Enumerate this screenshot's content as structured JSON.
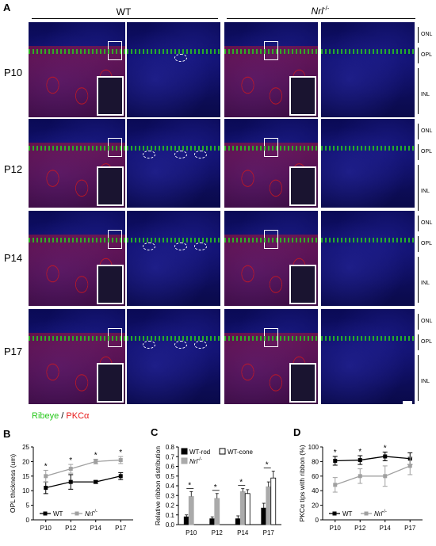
{
  "panels": {
    "a": {
      "letter": "A",
      "groups": [
        "WT",
        "Nrl-/-"
      ],
      "groups_italic_base": "Nrl",
      "groups_super": "-/-",
      "ages": [
        "P10",
        "P12",
        "P14",
        "P17"
      ],
      "layers": {
        "onl": "ONL",
        "opl": "OPL",
        "inl": "INL"
      },
      "legend_ribeye": "Ribeye",
      "legend_sep": " / ",
      "legend_pkca": "PKCα"
    },
    "b": {
      "letter": "B"
    },
    "c": {
      "letter": "C"
    },
    "d": {
      "letter": "D"
    }
  },
  "colors": {
    "ribeye": "#27c81c",
    "pkca": "#e81a1a",
    "wt": "#000000",
    "nrl": "#a0a0a0"
  },
  "chart_data": [
    {
      "id": "B",
      "type": "line",
      "x": [
        "P10",
        "P12",
        "P14",
        "P17"
      ],
      "ylabel": "OPL thickness (um)",
      "ylim": [
        0,
        25
      ],
      "yticks": [
        0,
        5,
        10,
        15,
        20,
        25
      ],
      "series": [
        {
          "name": "WT",
          "values": [
            11,
            13,
            13,
            15
          ],
          "err": [
            2,
            2.5,
            0.5,
            1.2
          ],
          "color": "#000000",
          "marker": "square"
        },
        {
          "name": "Nrl-/-",
          "values": [
            15,
            17.5,
            20,
            20.5
          ],
          "err": [
            2,
            1.5,
            0.8,
            1.2
          ],
          "color": "#a0a0a0",
          "marker": "square"
        }
      ],
      "significance": [
        "*",
        "*",
        "*",
        "*"
      ],
      "legend": [
        {
          "label": "WT"
        },
        {
          "label": "Nrl",
          "sup": "-/-"
        }
      ]
    },
    {
      "id": "C",
      "type": "bar",
      "categories": [
        "P10",
        "P12",
        "P14",
        "P17"
      ],
      "ylabel": "Relative ribbon distribution",
      "ylim": [
        0,
        0.8
      ],
      "yticks": [
        "0.0",
        "0.1",
        "0.2",
        "0.3",
        "0.4",
        "0.5",
        "0.6",
        "0.7",
        "0.8"
      ],
      "series": [
        {
          "name": "WT-rod",
          "values": [
            0.08,
            0.06,
            0.06,
            0.17
          ],
          "err": [
            0.02,
            0.02,
            0.03,
            0.05
          ],
          "fill": "#000000",
          "stroke": "#000000"
        },
        {
          "name": "Nrl-/-",
          "values": [
            0.29,
            0.27,
            0.34,
            0.39
          ],
          "err": [
            0.05,
            0.05,
            0.03,
            0.05
          ],
          "fill": "#aaaaaa",
          "stroke": "#aaaaaa"
        },
        {
          "name": "WT-cone",
          "values": [
            0.0,
            0.0,
            0.32,
            0.48
          ],
          "err": [
            0,
            0,
            0.04,
            0.07
          ],
          "fill": "#ffffff",
          "stroke": "#000000"
        }
      ],
      "significance": [
        "*",
        "*",
        "*",
        "*"
      ],
      "legend": [
        {
          "label": "WT-rod"
        },
        {
          "label": "WT-cone"
        },
        {
          "label": "Nrl",
          "sup": "-/-"
        }
      ]
    },
    {
      "id": "D",
      "type": "line",
      "x": [
        "P10",
        "P12",
        "P14",
        "P17"
      ],
      "ylabel": "PKCα tips with ribbon (%)",
      "ylim": [
        0,
        100
      ],
      "yticks": [
        0,
        20,
        40,
        60,
        80,
        100
      ],
      "series": [
        {
          "name": "WT",
          "values": [
            81,
            82,
            87,
            84
          ],
          "err": [
            6,
            6,
            6,
            8
          ],
          "color": "#000000",
          "marker": "square"
        },
        {
          "name": "Nrl-/-",
          "values": [
            48,
            60,
            60,
            74
          ],
          "err": [
            10,
            10,
            14,
            12
          ],
          "color": "#a0a0a0",
          "marker": "square"
        }
      ],
      "significance": [
        "*",
        "*",
        "*",
        ""
      ],
      "legend": [
        {
          "label": "WT"
        },
        {
          "label": "Nrl",
          "sup": "-/-"
        }
      ]
    }
  ]
}
